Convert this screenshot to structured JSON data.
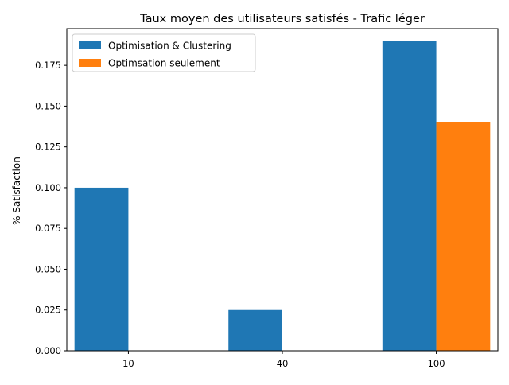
{
  "chart_data": {
    "type": "bar",
    "title": "Taux moyen des utilisateurs satisfés - Trafic léger",
    "xlabel": "",
    "ylabel": "% Satisfaction",
    "categories": [
      "10",
      "40",
      "100"
    ],
    "series": [
      {
        "name": "Optimisation & Clustering",
        "values": [
          0.1,
          0.025,
          0.19
        ],
        "color": "#1f77b4"
      },
      {
        "name": "Optimsation seulement",
        "values": [
          0.0,
          0.0,
          0.14
        ],
        "color": "#ff7f0e"
      }
    ],
    "ylim": [
      0,
      0.1975
    ],
    "yticks": [
      0.0,
      0.025,
      0.05,
      0.075,
      0.1,
      0.125,
      0.15,
      0.175
    ],
    "ytick_labels": [
      "0.000",
      "0.025",
      "0.050",
      "0.075",
      "0.100",
      "0.125",
      "0.150",
      "0.175"
    ],
    "grid": false,
    "legend_position": "top-left"
  }
}
